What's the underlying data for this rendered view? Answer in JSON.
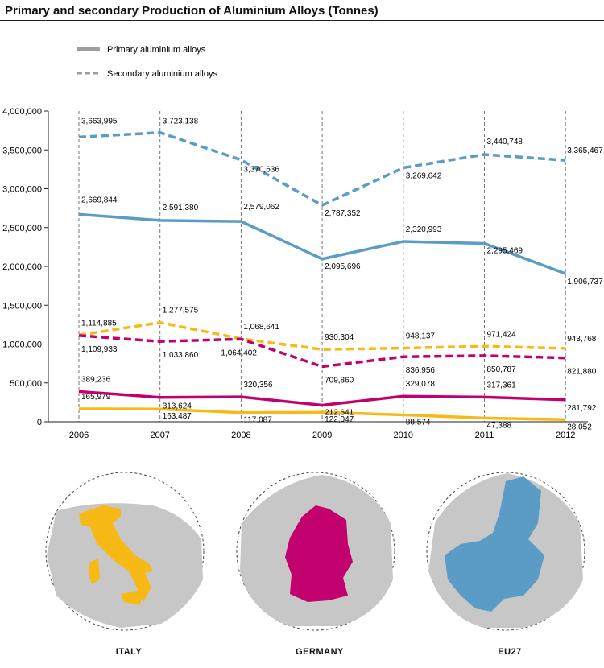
{
  "header": {
    "title": "Primary and secondary Production of Aluminium Alloys (Tonnes)"
  },
  "legend": {
    "primary": "Primary aluminium alloys",
    "secondary": "Secondary aluminium alloys",
    "color": "#9e9e9e"
  },
  "maps": [
    {
      "label": "ITALY",
      "color": "#f7b916"
    },
    {
      "label": "GERMANY",
      "color": "#c2006e"
    },
    {
      "label": "EU27",
      "color": "#5a9cc5"
    }
  ],
  "chart_data": {
    "type": "line",
    "x": [
      "2006",
      "2007",
      "2008",
      "2009",
      "2010",
      "2011",
      "2012"
    ],
    "ylim": [
      0,
      4000000
    ],
    "yticks": [
      0,
      500000,
      1000000,
      1500000,
      2000000,
      2500000,
      3000000,
      3500000,
      4000000
    ],
    "ytick_labels": [
      "0",
      "500,000",
      "1,000,000",
      "1,500,000",
      "2,000,000",
      "2,500,000",
      "3,000,000",
      "3,500,000",
      "4,000,000"
    ],
    "grid": "vertical dashed at each year",
    "legend_position": "top-left",
    "series": [
      {
        "region": "EU27",
        "kind": "secondary",
        "color": "#5a9cc5",
        "dashed": true,
        "values": [
          3663995,
          3723138,
          3370636,
          2787352,
          3269642,
          3440748,
          3365467
        ],
        "labels": [
          "3,663,995",
          "3,723,138",
          "3,370,636",
          "2,787,352",
          "3,269,642",
          "3,440,748",
          "3,365,467"
        ]
      },
      {
        "region": "EU27",
        "kind": "primary",
        "color": "#5a9cc5",
        "dashed": false,
        "values": [
          2669844,
          2591380,
          2579062,
          2095696,
          2320993,
          2295469,
          1906737
        ],
        "labels": [
          "2,669,844",
          "2,591,380",
          "2,579,062",
          "2,095,696",
          "2,320,993",
          "2,295,469",
          "1,906,737"
        ]
      },
      {
        "region": "ITALY",
        "kind": "secondary",
        "color": "#f7b916",
        "dashed": true,
        "values": [
          1114885,
          1277575,
          1068641,
          930304,
          948137,
          971424,
          943768
        ],
        "labels": [
          "1,114,885",
          "1,277,575",
          "1,068,641",
          "930,304",
          "948,137",
          "971,424",
          "943,768"
        ]
      },
      {
        "region": "GERMANY",
        "kind": "secondary",
        "color": "#c2006e",
        "dashed": true,
        "values": [
          1109933,
          1033860,
          1064402,
          709860,
          836956,
          850787,
          821880
        ],
        "labels": [
          "1,109,933",
          "1,033,860",
          "1,064,402",
          "709,860",
          "836,956",
          "850,787",
          "821,880"
        ]
      },
      {
        "region": "GERMANY",
        "kind": "primary",
        "color": "#c2006e",
        "dashed": false,
        "values": [
          389236,
          313624,
          320356,
          212641,
          329078,
          317361,
          281792
        ],
        "labels": [
          "389,236",
          "313,624",
          "320,356",
          "212,641",
          "329,078",
          "317,361",
          "281,792"
        ]
      },
      {
        "region": "ITALY",
        "kind": "primary",
        "color": "#f7b916",
        "dashed": false,
        "values": [
          165979,
          163487,
          117087,
          122047,
          88574,
          47388,
          28052
        ],
        "labels": [
          "165,979",
          "163,487",
          "117,087",
          "122,047",
          "88,574",
          "47,388",
          "28,052"
        ]
      }
    ]
  }
}
